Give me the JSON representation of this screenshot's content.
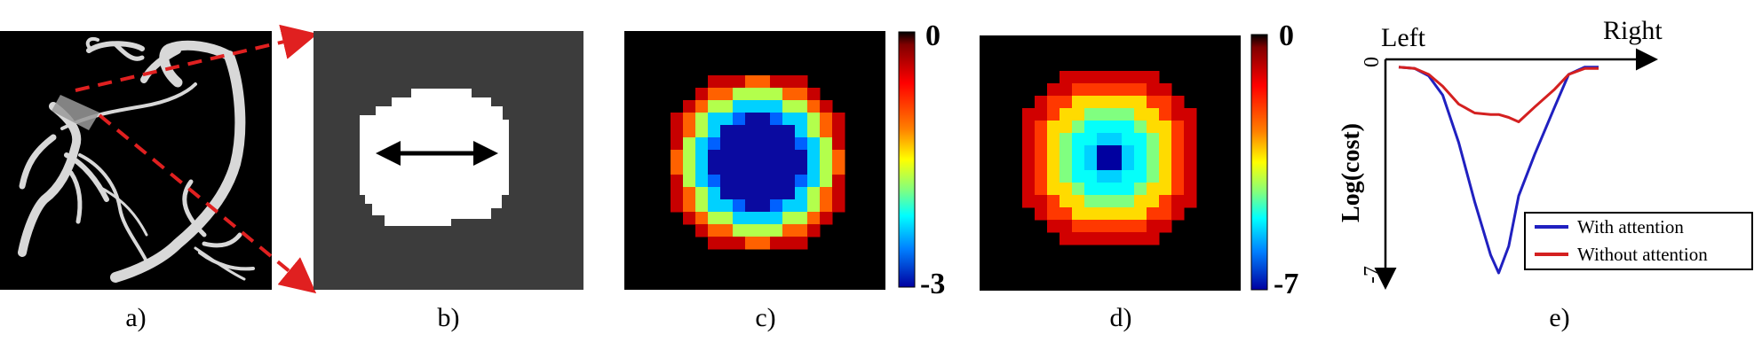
{
  "panels": [
    {
      "id": "a",
      "label": "a)"
    },
    {
      "id": "b",
      "label": "b)"
    },
    {
      "id": "c",
      "label": "c)",
      "colorbar": {
        "max_label": "0",
        "min_label": "-3"
      }
    },
    {
      "id": "d",
      "label": "d)",
      "colorbar": {
        "max_label": "0",
        "min_label": "-7"
      }
    },
    {
      "id": "e",
      "label": "e)"
    }
  ],
  "colors": {
    "background": "#000000",
    "slice_background": "#3c3c3c",
    "lumen": "#ffffff",
    "arrow_red": "#e02020",
    "vessel": "#d8d8d8",
    "blue_line": "#2020c0",
    "red_line": "#d42020"
  },
  "chart_data": {
    "type": "line",
    "title": "",
    "xlabel_left": "Left",
    "xlabel_right": "Right",
    "ylabel": "Log(cost)",
    "ytick_top": "0",
    "ytick_bottom": "-7",
    "ylim": [
      -7,
      0
    ],
    "x": [
      0,
      0.08,
      0.15,
      0.22,
      0.3,
      0.38,
      0.46,
      0.5,
      0.55,
      0.6,
      0.68,
      0.78,
      0.85,
      0.93,
      1
    ],
    "series": [
      {
        "name": "With attention",
        "color": "#2020c0",
        "values": [
          -0.05,
          -0.1,
          -0.35,
          -1.0,
          -2.6,
          -4.6,
          -6.4,
          -7.0,
          -6.1,
          -4.4,
          -3.0,
          -1.4,
          -0.3,
          -0.05,
          -0.05
        ]
      },
      {
        "name": "Without attention",
        "color": "#d42020",
        "values": [
          -0.05,
          -0.1,
          -0.3,
          -0.7,
          -1.3,
          -1.6,
          -1.65,
          -1.65,
          -1.75,
          -1.9,
          -1.4,
          -0.8,
          -0.3,
          -0.1,
          -0.1
        ]
      }
    ],
    "legend": "bottom-right"
  }
}
